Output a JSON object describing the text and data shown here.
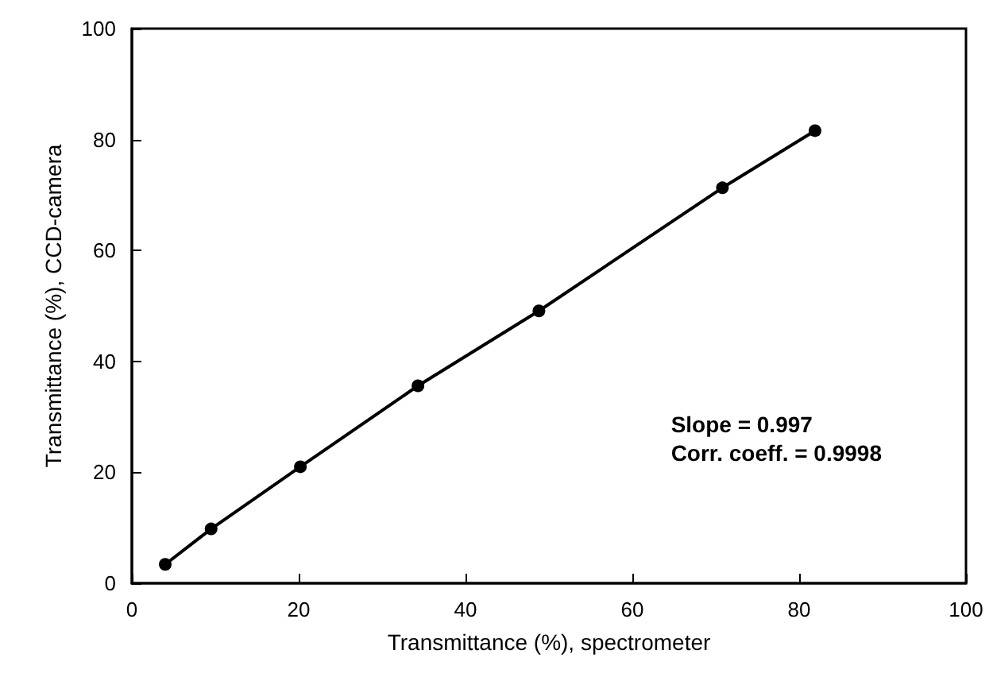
{
  "chart_data": {
    "type": "line",
    "xlabel": "Transmittance (%), spectrometer",
    "ylabel": "Transmittance (%), CCD-camera",
    "x": [
      4,
      9.5,
      20.2,
      34.3,
      48.8,
      70.8,
      81.9
    ],
    "series": [
      {
        "color": "#000000",
        "values": [
          3.4,
          9.8,
          21,
          35.6,
          49.1,
          71.3,
          81.6
        ]
      }
    ],
    "xlim": [
      0,
      100
    ],
    "xticks": [
      0,
      20,
      40,
      60,
      80,
      100
    ],
    "ylim": [
      0,
      100
    ],
    "yticks": [
      0,
      20,
      40,
      60,
      80,
      100
    ],
    "marker": "circle",
    "line_style": "solid",
    "grid": false,
    "annotations": [
      "Slope = 0.997",
      "Corr. coeff. = 0.9998"
    ]
  }
}
